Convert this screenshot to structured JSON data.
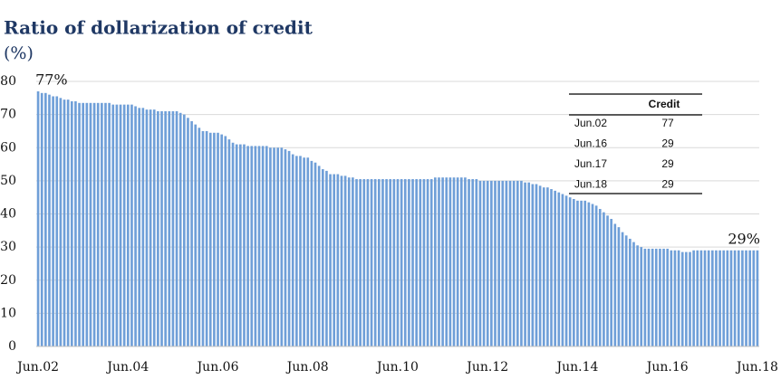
{
  "chart_data": {
    "type": "bar",
    "title": "Ratio of dollarization of credit",
    "subtitle": "(%)",
    "categories": [
      "Jun.02",
      null,
      null,
      null,
      null,
      null,
      null,
      null,
      null,
      null,
      null,
      null,
      null,
      null,
      null,
      null,
      null,
      null,
      null,
      null,
      null,
      null,
      null,
      null,
      "Jun.04",
      null,
      null,
      null,
      null,
      null,
      null,
      null,
      null,
      null,
      null,
      null,
      null,
      null,
      null,
      null,
      null,
      null,
      null,
      null,
      null,
      null,
      null,
      null,
      "Jun.06",
      null,
      null,
      null,
      null,
      null,
      null,
      null,
      null,
      null,
      null,
      null,
      null,
      null,
      null,
      null,
      null,
      null,
      null,
      null,
      null,
      null,
      null,
      null,
      "Jun.08",
      null,
      null,
      null,
      null,
      null,
      null,
      null,
      null,
      null,
      null,
      null,
      null,
      null,
      null,
      null,
      null,
      null,
      null,
      null,
      null,
      null,
      null,
      null,
      "Jun.10",
      null,
      null,
      null,
      null,
      null,
      null,
      null,
      null,
      null,
      null,
      null,
      null,
      null,
      null,
      null,
      null,
      null,
      null,
      null,
      null,
      null,
      null,
      null,
      "Jun.12",
      null,
      null,
      null,
      null,
      null,
      null,
      null,
      null,
      null,
      null,
      null,
      null,
      null,
      null,
      null,
      null,
      null,
      null,
      null,
      null,
      null,
      null,
      null,
      "Jun.14",
      null,
      null,
      null,
      null,
      null,
      null,
      null,
      null,
      null,
      null,
      null,
      null,
      null,
      null,
      null,
      null,
      null,
      null,
      null,
      null,
      null,
      null,
      null,
      "Jun.16",
      null,
      null,
      null,
      null,
      null,
      null,
      null,
      null,
      null,
      null,
      null,
      null,
      null,
      null,
      null,
      null,
      null,
      null,
      null,
      null,
      null,
      null,
      null,
      "Jun.18"
    ],
    "values": [
      77,
      76.5,
      76.5,
      76,
      75.5,
      75.5,
      75,
      74.5,
      74.5,
      74,
      74,
      73.5,
      73.5,
      73.5,
      73.5,
      73.5,
      73.5,
      73.5,
      73.5,
      73.5,
      73,
      73,
      73,
      73,
      73,
      73,
      72.5,
      72,
      72,
      71.5,
      71.5,
      71.5,
      71,
      71,
      71,
      71,
      71,
      71,
      70.5,
      70,
      69,
      68,
      67,
      66,
      65,
      65,
      64.5,
      64.5,
      64.5,
      64,
      63.5,
      62.5,
      61.5,
      61,
      61,
      61,
      60.5,
      60.5,
      60.5,
      60.5,
      60.5,
      60.5,
      60,
      60,
      60,
      60,
      59.5,
      59,
      58,
      57.5,
      57.5,
      57,
      57,
      56,
      55.5,
      54.5,
      53.5,
      53,
      52,
      52,
      52,
      51.5,
      51.5,
      51,
      51,
      50.5,
      50.5,
      50.5,
      50.5,
      50.5,
      50.5,
      50.5,
      50.5,
      50.5,
      50.5,
      50.5,
      50.5,
      50.5,
      50.5,
      50.5,
      50.5,
      50.5,
      50.5,
      50.5,
      50.5,
      50.5,
      51,
      51,
      51,
      51,
      51,
      51,
      51,
      51,
      51,
      50.5,
      50.5,
      50.5,
      50,
      50,
      50,
      50,
      50,
      50,
      50,
      50,
      50,
      50,
      50,
      50,
      49.5,
      49.5,
      49,
      49,
      48.5,
      48,
      48,
      47.5,
      47,
      46.5,
      46,
      45.5,
      45,
      44.5,
      44,
      44,
      44,
      43.5,
      43,
      42.5,
      41.5,
      40.5,
      39.5,
      38.5,
      37,
      36,
      34.5,
      33.5,
      32.5,
      31.5,
      30.5,
      30,
      29.5,
      29.5,
      29.5,
      29.5,
      29.5,
      29.5,
      29.5,
      29,
      29,
      29,
      28.5,
      28.5,
      28.5,
      29,
      29,
      29,
      29,
      29,
      29,
      29,
      29,
      29,
      29,
      29,
      29,
      29,
      29,
      29,
      29,
      29,
      29
    ],
    "value_labels": [
      "77%",
      null,
      null,
      null,
      null,
      null,
      null,
      null,
      null,
      null,
      null,
      null,
      null,
      null,
      null,
      null,
      null,
      null,
      null,
      null,
      null,
      null,
      null,
      null,
      null,
      null,
      null,
      null,
      null,
      null,
      null,
      null,
      null,
      null,
      null,
      null,
      null,
      null,
      null,
      null,
      null,
      null,
      null,
      null,
      null,
      null,
      null,
      null,
      null,
      null,
      null,
      null,
      null,
      null,
      null,
      null,
      null,
      null,
      null,
      null,
      null,
      null,
      null,
      null,
      null,
      null,
      null,
      null,
      null,
      null,
      null,
      null,
      null,
      null,
      null,
      null,
      null,
      null,
      null,
      null,
      null,
      null,
      null,
      null,
      null,
      null,
      null,
      null,
      null,
      null,
      null,
      null,
      null,
      null,
      null,
      null,
      null,
      null,
      null,
      null,
      null,
      null,
      null,
      null,
      null,
      null,
      null,
      null,
      null,
      null,
      null,
      null,
      null,
      null,
      null,
      null,
      null,
      null,
      null,
      null,
      null,
      null,
      null,
      null,
      null,
      null,
      null,
      null,
      null,
      null,
      null,
      null,
      null,
      null,
      null,
      null,
      null,
      null,
      null,
      null,
      null,
      null,
      null,
      null,
      null,
      null,
      null,
      null,
      null,
      null,
      null,
      null,
      null,
      null,
      null,
      null,
      null,
      null,
      null,
      null,
      null,
      null,
      null,
      null,
      null,
      null,
      null,
      null,
      null,
      null,
      null,
      null,
      null,
      null,
      null,
      null,
      null,
      null,
      null,
      null,
      null,
      null,
      null,
      null,
      null,
      null,
      null,
      null,
      null,
      null,
      null,
      null,
      "29%"
    ],
    "color": "#6f9fd8",
    "ylim": [
      0,
      80
    ],
    "yticks": [
      0,
      10,
      20,
      30,
      40,
      50,
      60,
      70,
      80
    ],
    "grid": true,
    "table": {
      "header": "Credit",
      "rows": [
        [
          "Jun.02",
          77
        ],
        [
          "Jun.16",
          29
        ],
        [
          "Jun.17",
          29
        ],
        [
          "Jun.18",
          29
        ]
      ]
    }
  }
}
